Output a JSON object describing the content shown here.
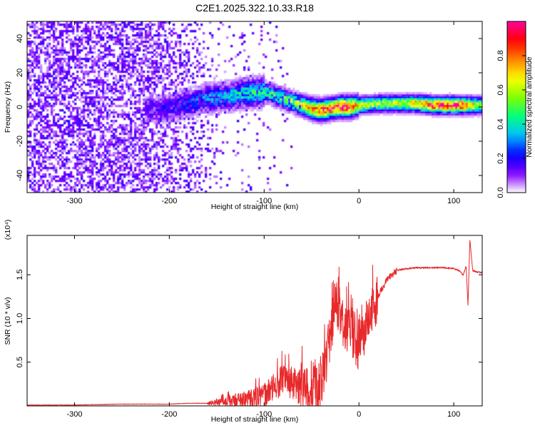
{
  "figure": {
    "title": "C2E1.2025.322.10.33.R18"
  },
  "chart_data": [
    {
      "type": "heatmap",
      "title": "C2E1.2025.322.10.33.R18",
      "xlabel": "Height of straight line (km)",
      "ylabel": "Frequency (Hz)",
      "xlim": [
        -350,
        130
      ],
      "ylim": [
        -50,
        50
      ],
      "xticks": [
        -300,
        -200,
        -100,
        0,
        100
      ],
      "yticks": [
        -40,
        -20,
        0,
        20,
        40
      ],
      "colorbar": {
        "label": "Normalized spectral amplitude",
        "range": [
          0,
          1
        ],
        "ticks": [
          "0.0",
          "0.2",
          "0.4",
          "0.6",
          "0.8"
        ],
        "colors": [
          "#ffffff",
          "#8000ff",
          "#0000ff",
          "#00c0ff",
          "#00ff80",
          "#80ff00",
          "#ffff00",
          "#ff8000",
          "#ff0000",
          "#ff00a0"
        ]
      },
      "ridge": {
        "description": "dominant frequency ridge vs height",
        "x": [
          -220,
          -200,
          -180,
          -160,
          -140,
          -120,
          -100,
          -90,
          -80,
          -70,
          -60,
          -50,
          -40,
          -30,
          -20,
          -10,
          0,
          20,
          40,
          60,
          80,
          100,
          115,
          130
        ],
        "freq": [
          -2,
          0,
          2,
          5,
          6,
          8,
          9,
          7,
          5,
          3,
          1,
          -1,
          -2,
          -1,
          0,
          0,
          1,
          2,
          2,
          2,
          1,
          1,
          1,
          1
        ],
        "amplitude": [
          0.15,
          0.2,
          0.25,
          0.3,
          0.35,
          0.4,
          0.45,
          0.45,
          0.5,
          0.55,
          0.6,
          0.75,
          0.85,
          0.85,
          0.9,
          0.95,
          0.6,
          0.55,
          0.6,
          0.7,
          0.9,
          0.95,
          0.8,
          0.5
        ]
      }
    },
    {
      "type": "line",
      "xlabel": "Height of straight line (km)",
      "ylabel": "SNR (10 * v/v)",
      "scale_label": "(x10⁴)",
      "xlim": [
        -350,
        130
      ],
      "ylim": [
        0,
        1.95
      ],
      "xticks": [
        -300,
        -200,
        -100,
        0,
        100
      ],
      "yticks": [
        "0.5",
        "1.0",
        "1.5"
      ],
      "series": [
        {
          "name": "SNR",
          "color": "#e8292b",
          "x": [
            -350,
            -300,
            -250,
            -200,
            -180,
            -160,
            -140,
            -120,
            -100,
            -80,
            -70,
            -60,
            -50,
            -40,
            -35,
            -30,
            -25,
            -20,
            -15,
            -10,
            -5,
            0,
            10,
            20,
            30,
            40,
            50,
            60,
            70,
            80,
            90,
            100,
            105,
            110,
            113,
            115,
            117,
            120,
            125,
            130
          ],
          "y": [
            0.01,
            0.01,
            0.02,
            0.02,
            0.03,
            0.03,
            0.05,
            0.08,
            0.12,
            0.3,
            0.25,
            0.2,
            0.15,
            0.25,
            0.5,
            0.8,
            1.2,
            1.05,
            0.85,
            0.9,
            0.8,
            0.65,
            1.0,
            1.25,
            1.45,
            1.55,
            1.57,
            1.58,
            1.58,
            1.58,
            1.58,
            1.57,
            1.55,
            1.5,
            1.6,
            1.15,
            1.9,
            1.55,
            1.53,
            1.53
          ]
        }
      ]
    }
  ]
}
